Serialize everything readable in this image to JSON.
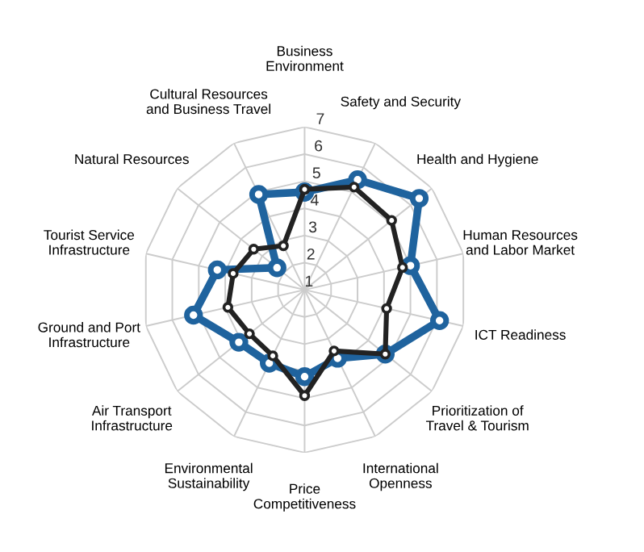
{
  "chart_data": {
    "type": "radar",
    "categories": [
      "Business\nEnvironment",
      "Safety and Security",
      "Health and Hygiene",
      "Human Resources\nand Labor Market",
      "ICT Readiness",
      "Prioritization of\nTravel & Tourism",
      "International\nOpenness",
      "Price\nCompetitiveness",
      "Environmental\nSustainability",
      "Air Transport\nInfrastructure",
      "Ground and Port\nInfrastructure",
      "Tourist Service\nInfrastructure",
      "Natural Resources",
      "Cultural Resources\nand Business Travel"
    ],
    "series": [
      {
        "color": "#1f639e",
        "values": [
          4.6,
          5.5,
          6.4,
          5.0,
          6.1,
          4.8,
          3.8,
          4.2,
          4.0,
          4.1,
          5.2,
          4.3,
          2.3,
          4.9
        ]
      },
      {
        "color": "#222222",
        "values": [
          4.7,
          5.2,
          5.1,
          4.7,
          4.1,
          4.8,
          3.5,
          4.9,
          3.7,
          3.6,
          3.9,
          3.7,
          3.4,
          2.8
        ]
      }
    ],
    "ylim": [
      1,
      7
    ],
    "yticks": [
      1,
      2,
      3,
      4,
      5,
      6,
      7
    ],
    "grid": true,
    "marker": "circle",
    "line_style": "solid"
  }
}
